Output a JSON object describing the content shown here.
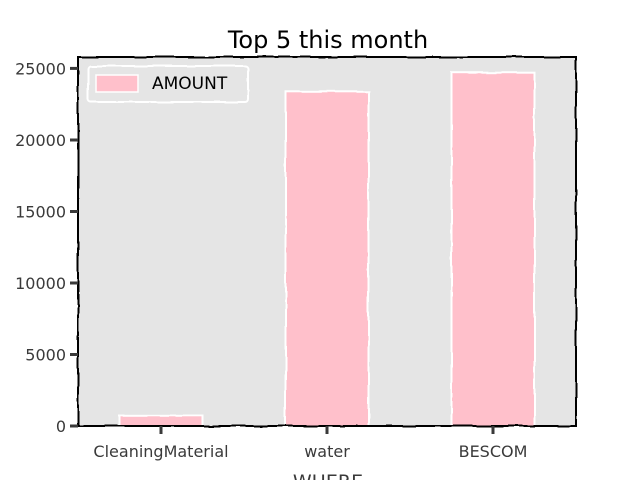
{
  "chart_data": {
    "type": "bar",
    "title": "Top 5 this month",
    "xlabel": "WHERE",
    "ylabel": "",
    "categories": [
      "CleaningMaterial",
      "water",
      "BESCOM"
    ],
    "series": [
      {
        "name": "AMOUNT",
        "values": [
          750,
          23400,
          24700
        ],
        "color": "#ffc0cb"
      }
    ],
    "ylim": [
      0,
      25800
    ],
    "yticks": [
      0,
      5000,
      10000,
      15000,
      20000,
      25000
    ],
    "ytick_labels": [
      "0",
      "5000",
      "10000",
      "15000",
      "20000",
      "25000"
    ],
    "legend_position": "top-left",
    "plot_background": "#e5e5e5",
    "bar_edge_color": "#ffffff",
    "grid": false,
    "style": "xkcd"
  }
}
